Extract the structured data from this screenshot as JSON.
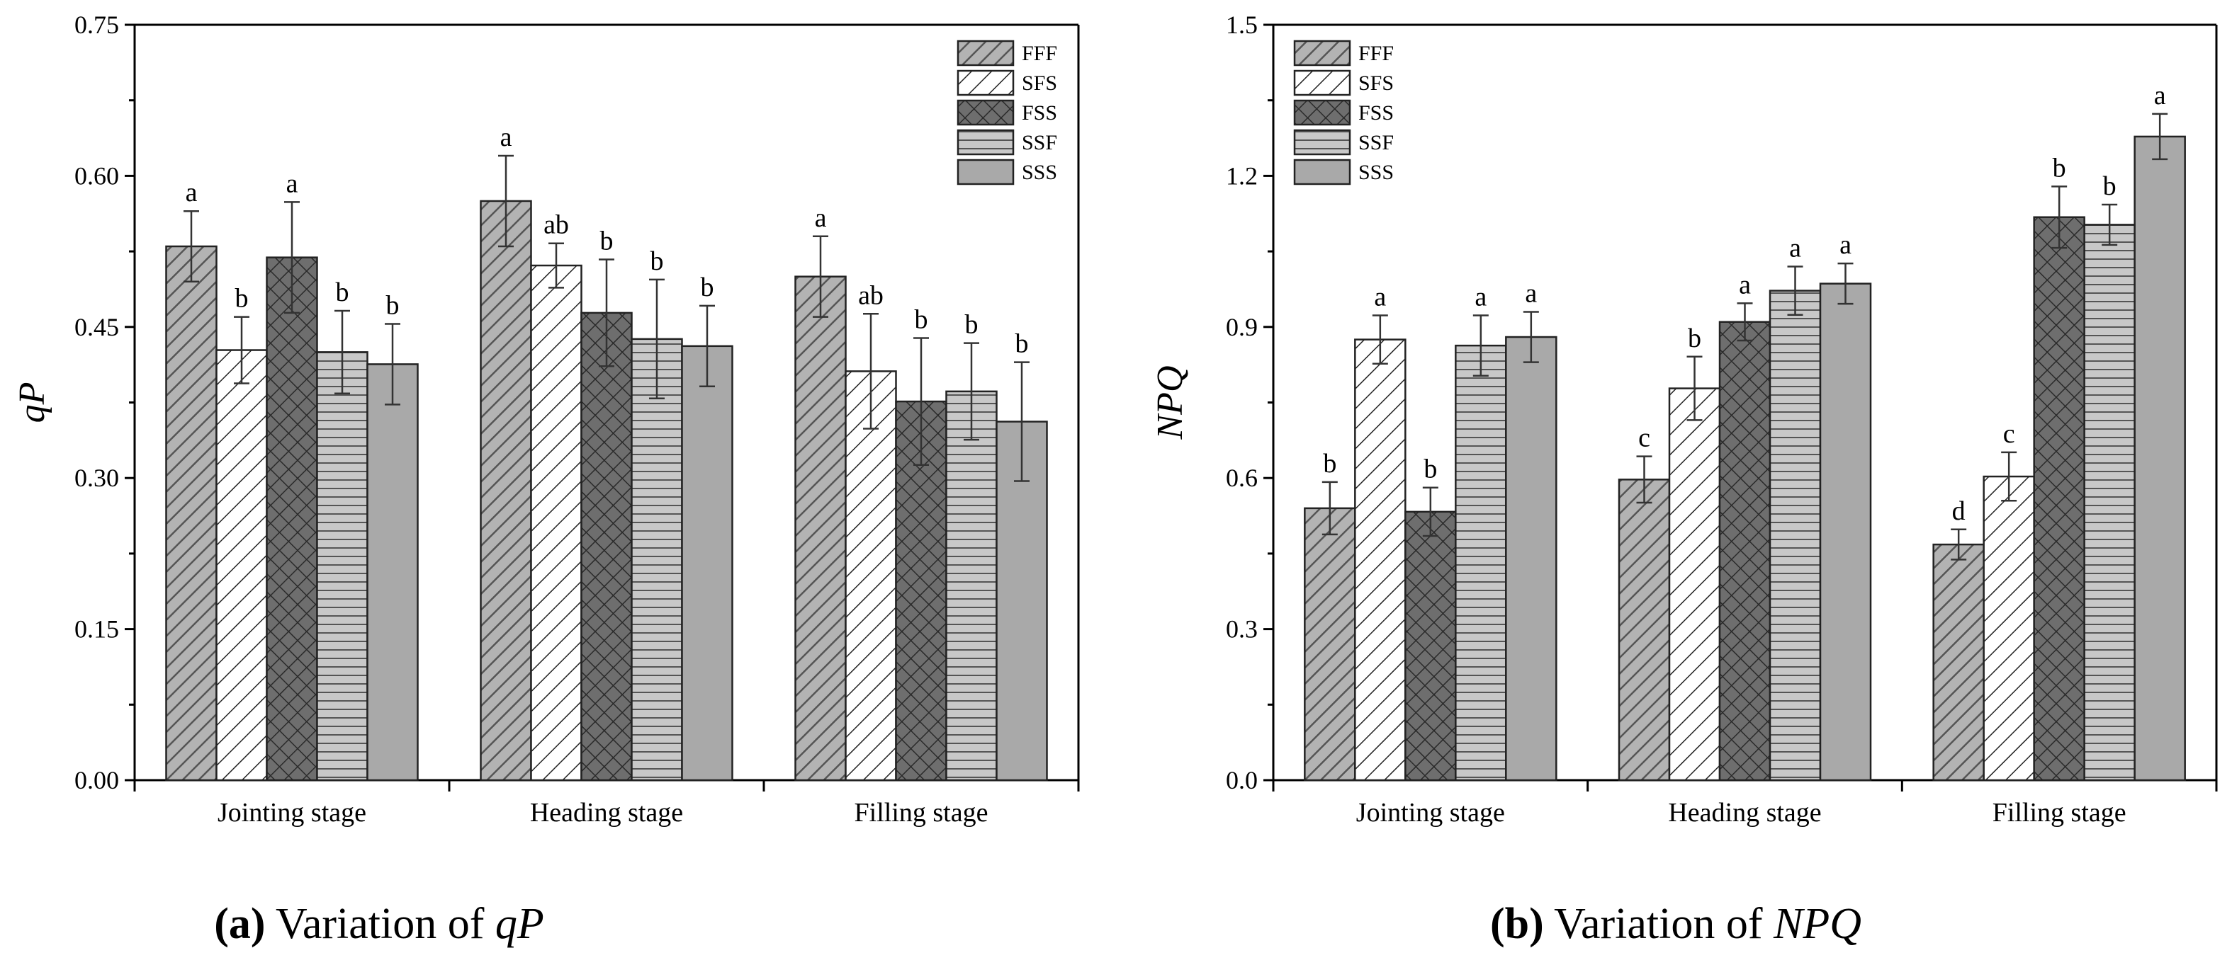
{
  "legend": [
    "FFF",
    "SFS",
    "FSS",
    "SSF",
    "SSS"
  ],
  "chart_data": [
    {
      "type": "bar",
      "title": "",
      "ylabel": "qP",
      "xlabel": "",
      "ylim": [
        0,
        0.75
      ],
      "yticks": [
        "0.00",
        "0.15",
        "0.30",
        "0.45",
        "0.60",
        "0.75"
      ],
      "ytick_values": [
        0,
        0.15,
        0.3,
        0.45,
        0.6,
        0.75
      ],
      "categories": [
        "Jointing stage",
        "Heading stage",
        "Filling stage"
      ],
      "series": [
        {
          "name": "FFF",
          "values": [
            0.53,
            0.575,
            0.5
          ],
          "errors": [
            0.035,
            0.045,
            0.04
          ],
          "letters": [
            "a",
            "a",
            "a"
          ]
        },
        {
          "name": "SFS",
          "values": [
            0.427,
            0.511,
            0.406
          ],
          "errors": [
            0.033,
            0.022,
            0.057
          ],
          "letters": [
            "b",
            "ab",
            "ab"
          ]
        },
        {
          "name": "FSS",
          "values": [
            0.519,
            0.464,
            0.376
          ],
          "errors": [
            0.055,
            0.053,
            0.063
          ],
          "letters": [
            "a",
            "b",
            "b"
          ]
        },
        {
          "name": "SSF",
          "values": [
            0.425,
            0.438,
            0.386
          ],
          "errors": [
            0.041,
            0.059,
            0.048
          ],
          "letters": [
            "b",
            "b",
            "b"
          ]
        },
        {
          "name": "SSS",
          "values": [
            0.413,
            0.431,
            0.356
          ],
          "errors": [
            0.04,
            0.04,
            0.059
          ],
          "letters": [
            "b",
            "b",
            "b"
          ]
        }
      ],
      "legend_position": "top-right",
      "caption": {
        "letter": "(a)",
        "text": " Variation of ",
        "var": "qP"
      }
    },
    {
      "type": "bar",
      "title": "",
      "ylabel": "NPQ",
      "xlabel": "",
      "ylim": [
        0,
        1.5
      ],
      "yticks": [
        "0.0",
        "0.3",
        "0.6",
        "0.9",
        "1.2",
        "1.5"
      ],
      "ytick_values": [
        0,
        0.3,
        0.6,
        0.9,
        1.2,
        1.5
      ],
      "categories": [
        "Jointing stage",
        "Heading stage",
        "Filling stage"
      ],
      "series": [
        {
          "name": "FFF",
          "values": [
            0.54,
            0.597,
            0.468
          ],
          "errors": [
            0.052,
            0.046,
            0.03
          ],
          "letters": [
            "b",
            "c",
            "d"
          ]
        },
        {
          "name": "SFS",
          "values": [
            0.875,
            0.778,
            0.603
          ],
          "errors": [
            0.048,
            0.063,
            0.048
          ],
          "letters": [
            "a",
            "b",
            "c"
          ]
        },
        {
          "name": "FSS",
          "values": [
            0.533,
            0.91,
            1.118
          ],
          "errors": [
            0.048,
            0.037,
            0.061
          ],
          "letters": [
            "b",
            "a",
            "b"
          ]
        },
        {
          "name": "SSF",
          "values": [
            0.863,
            0.972,
            1.103
          ],
          "errors": [
            0.06,
            0.048,
            0.04
          ],
          "letters": [
            "a",
            "a",
            "b"
          ]
        },
        {
          "name": "SSS",
          "values": [
            0.88,
            0.986,
            1.278
          ],
          "errors": [
            0.05,
            0.04,
            0.045
          ],
          "letters": [
            "a",
            "a",
            "a"
          ]
        }
      ],
      "legend_position": "top-left",
      "caption": {
        "letter": "(b)",
        "text": " Variation of ",
        "var": "NPQ"
      }
    }
  ]
}
